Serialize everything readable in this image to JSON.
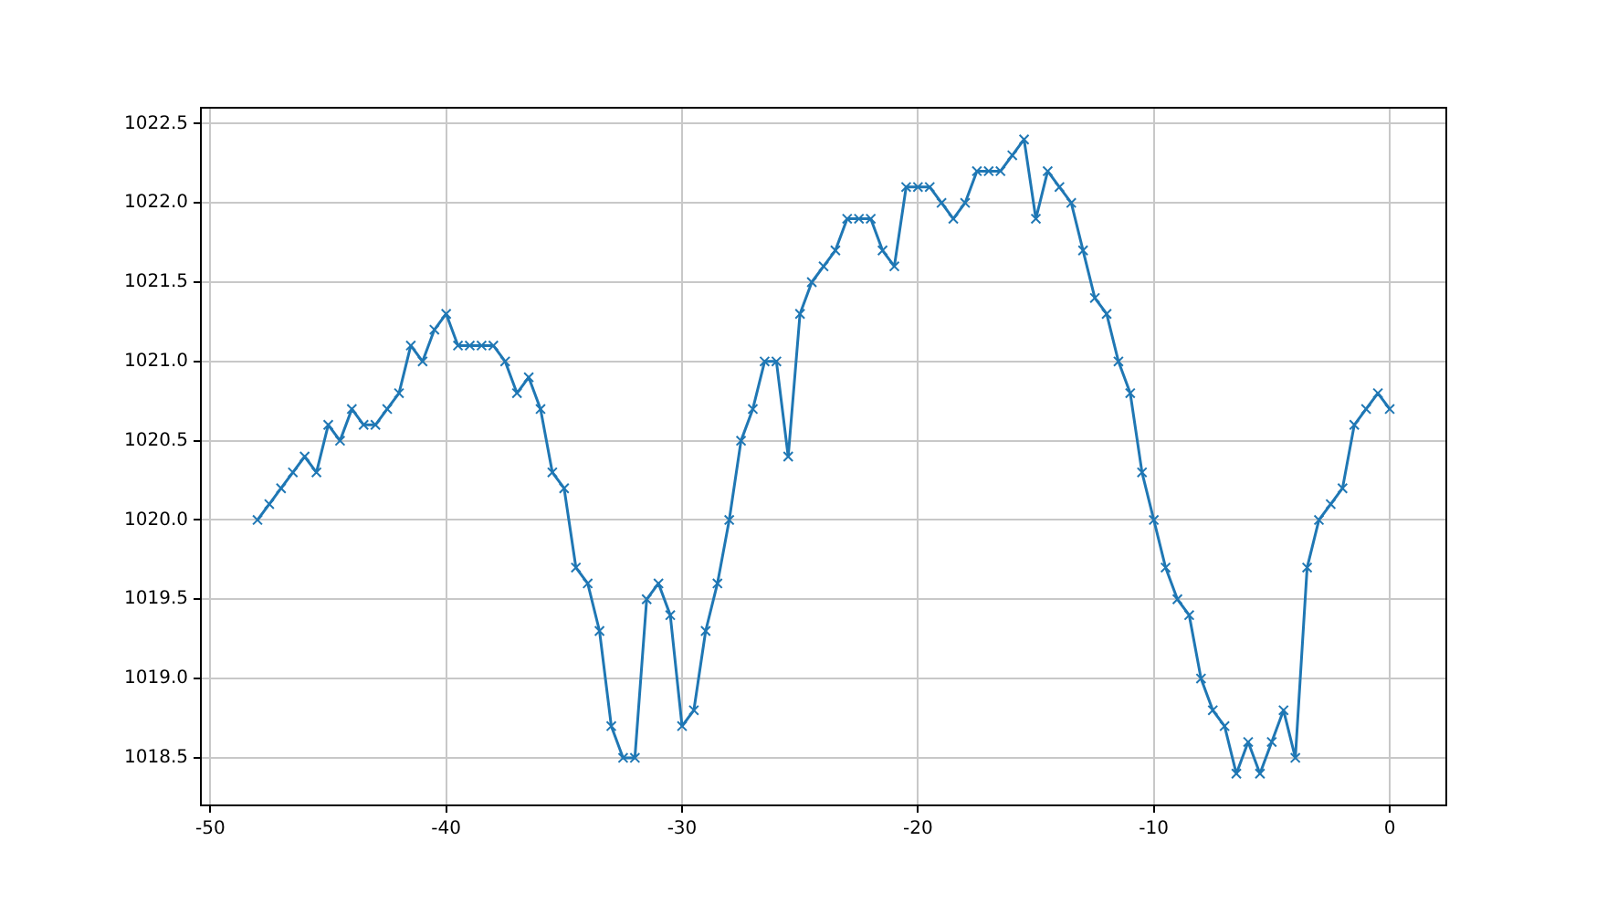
{
  "chart_data": {
    "type": "line",
    "x": [
      -48,
      -47.5,
      -47,
      -46.5,
      -46,
      -45.5,
      -45,
      -44.5,
      -44,
      -43.5,
      -43,
      -42.5,
      -42,
      -41.5,
      -41,
      -40.5,
      -40,
      -39.5,
      -39,
      -38.5,
      -38,
      -37.5,
      -37,
      -36.5,
      -36,
      -35.5,
      -35,
      -34.5,
      -34,
      -33.5,
      -33,
      -32.5,
      -32,
      -31.5,
      -31,
      -30.5,
      -30,
      -29.5,
      -29,
      -28.5,
      -28,
      -27.5,
      -27,
      -26.5,
      -26,
      -25.5,
      -25,
      -24.5,
      -24,
      -23.5,
      -23,
      -22.5,
      -22,
      -21.5,
      -21,
      -20.5,
      -20,
      -19.5,
      -19,
      -18.5,
      -18,
      -17.5,
      -17,
      -16.5,
      -16,
      -15.5,
      -15,
      -14.5,
      -14,
      -13.5,
      -13,
      -12.5,
      -12,
      -11.5,
      -11,
      -10.5,
      -10,
      -9.5,
      -9,
      -8.5,
      -8,
      -7.5,
      -7,
      -6.5,
      -6,
      -5.5,
      -5,
      -4.5,
      -4,
      -3.5,
      -3,
      -2.5,
      -2,
      -1.5,
      -1,
      -0.5,
      0
    ],
    "series": [
      {
        "color": "#1f77b4",
        "values": [
          1020.0,
          1020.1,
          1020.2,
          1020.3,
          1020.4,
          1020.3,
          1020.6,
          1020.5,
          1020.7,
          1020.6,
          1020.6,
          1020.7,
          1020.8,
          1021.1,
          1021.0,
          1021.2,
          1021.3,
          1021.1,
          1021.1,
          1021.1,
          1021.1,
          1021.0,
          1020.8,
          1020.9,
          1020.7,
          1020.3,
          1020.2,
          1019.7,
          1019.6,
          1019.3,
          1018.7,
          1018.5,
          1018.5,
          1019.5,
          1019.6,
          1019.4,
          1018.7,
          1018.8,
          1019.3,
          1019.6,
          1020.0,
          1020.5,
          1020.7,
          1021.0,
          1021.0,
          1020.4,
          1021.3,
          1021.5,
          1021.6,
          1021.7,
          1021.9,
          1021.9,
          1021.9,
          1021.7,
          1021.6,
          1022.1,
          1022.1,
          1022.1,
          1022.0,
          1021.9,
          1022.0,
          1022.2,
          1022.2,
          1022.2,
          1022.3,
          1022.4,
          1021.9,
          1022.2,
          1022.1,
          1022.0,
          1021.7,
          1021.4,
          1021.3,
          1021.0,
          1020.8,
          1020.3,
          1020.0,
          1019.7,
          1019.5,
          1019.4,
          1019.0,
          1018.8,
          1018.7,
          1018.4,
          1018.6,
          1018.4,
          1018.6,
          1018.8,
          1018.5,
          1019.7,
          1020.0,
          1020.1,
          1020.2,
          1020.6,
          1020.7,
          1020.8,
          1020.7
        ]
      }
    ],
    "xlim": [
      -50.4,
      2.4
    ],
    "ylim": [
      1018.2,
      1022.6
    ],
    "xticks": [
      -50,
      -40,
      -30,
      -20,
      -10,
      0
    ],
    "yticks": [
      {
        "value": 1018.5,
        "label": "1018.5"
      },
      {
        "value": 1019,
        "label": "1019.0"
      },
      {
        "value": 1019.5,
        "label": "1019.5"
      },
      {
        "value": 1020,
        "label": "1020.0"
      },
      {
        "value": 1020.5,
        "label": "1020.5"
      },
      {
        "value": 1021,
        "label": "1021.0"
      },
      {
        "value": 1021.5,
        "label": "1021.5"
      },
      {
        "value": 1022,
        "label": "1022.0"
      },
      {
        "value": 1022.5,
        "label": "1022.5"
      }
    ],
    "grid": true,
    "legend": false,
    "marker": "cross",
    "line_style": "solid"
  }
}
